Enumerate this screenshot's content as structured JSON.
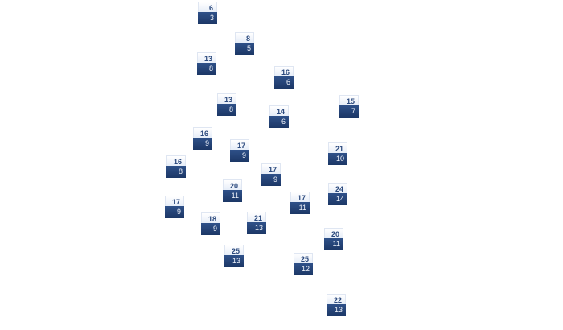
{
  "nodes": [
    {
      "top": "6",
      "bottom": "3"
    },
    {
      "top": "8",
      "bottom": "5"
    },
    {
      "top": "13",
      "bottom": "8"
    },
    {
      "top": "16",
      "bottom": "6"
    },
    {
      "top": "13",
      "bottom": "8"
    },
    {
      "top": "15",
      "bottom": "7"
    },
    {
      "top": "14",
      "bottom": "6"
    },
    {
      "top": "16",
      "bottom": "9"
    },
    {
      "top": "17",
      "bottom": "9"
    },
    {
      "top": "21",
      "bottom": "10"
    },
    {
      "top": "16",
      "bottom": "8"
    },
    {
      "top": "17",
      "bottom": "9"
    },
    {
      "top": "20",
      "bottom": "11"
    },
    {
      "top": "24",
      "bottom": "14"
    },
    {
      "top": "17",
      "bottom": "9"
    },
    {
      "top": "17",
      "bottom": "11"
    },
    {
      "top": "21",
      "bottom": "13"
    },
    {
      "top": "18",
      "bottom": "9"
    },
    {
      "top": "20",
      "bottom": "11"
    },
    {
      "top": "25",
      "bottom": "13"
    },
    {
      "top": "25",
      "bottom": "12"
    },
    {
      "top": "22",
      "bottom": "13"
    }
  ],
  "colors": {
    "node_dark": "#1c3766",
    "node_text": "#2c4a7e"
  }
}
